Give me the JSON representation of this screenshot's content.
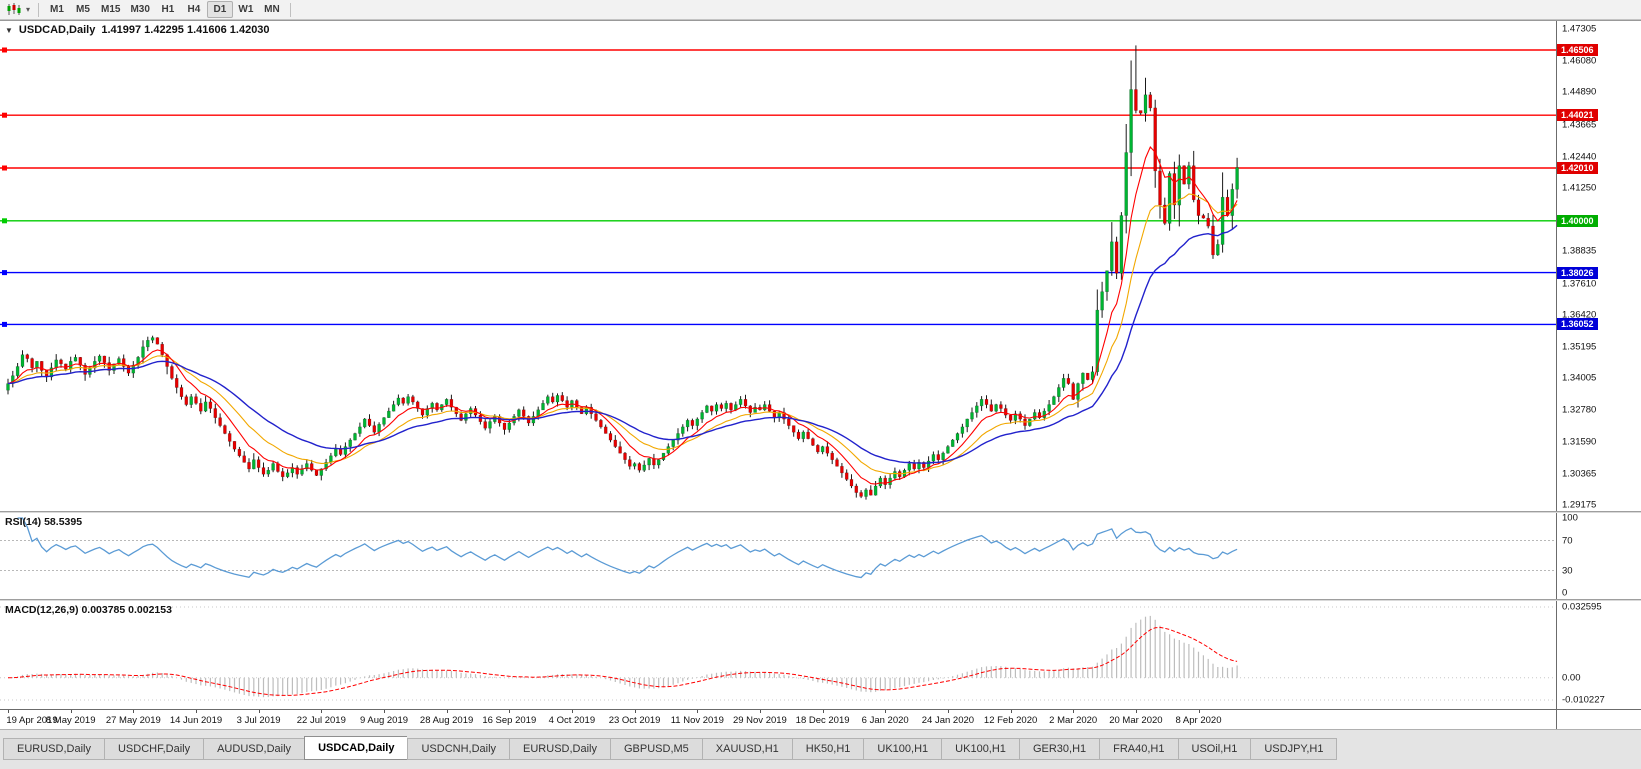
{
  "toolbar": {
    "periods": [
      "M1",
      "M5",
      "M15",
      "M30",
      "H1",
      "H4",
      "D1",
      "W1",
      "MN"
    ],
    "active_period": "D1"
  },
  "icons": {
    "symbol_dropdown": "▼",
    "toolbar_dropdown": "▾"
  },
  "chart_data": {
    "type": "candlestick",
    "title_symbol": "USDCAD,Daily",
    "title_ohlc": "1.41997 1.42295 1.41606 1.42030",
    "price_min": 1.29175,
    "price_max": 1.47305,
    "price_labels": [
      "1.47305",
      "1.46080",
      "1.44890",
      "1.43665",
      "1.42440",
      "1.41250",
      "1.40025",
      "1.38835",
      "1.37610",
      "1.36420",
      "1.35195",
      "1.34005",
      "1.32780",
      "1.31590",
      "1.30365",
      "1.29175"
    ],
    "levels": [
      {
        "value": 1.46506,
        "label": "1.46506",
        "line_color": "#ff0000",
        "badge_color": "#e00000"
      },
      {
        "value": 1.44021,
        "label": "1.44021",
        "line_color": "#ff0000",
        "badge_color": "#e00000"
      },
      {
        "value": 1.4201,
        "label": "1.42010",
        "line_color": "#ff0000",
        "badge_color": "#e00000"
      },
      {
        "value": 1.4,
        "label": "1.40000",
        "line_color": "#00cc00",
        "badge_color": "#00ad00"
      },
      {
        "value": 1.38026,
        "label": "1.38026",
        "line_color": "#0000ff",
        "badge_color": "#0000d8"
      },
      {
        "value": 1.36052,
        "label": "1.36052",
        "line_color": "#0000ff",
        "badge_color": "#0000d8"
      }
    ],
    "up_color": "#00b432",
    "down_color": "#e60000",
    "wick_color": "#1a1a1a",
    "mas": [
      {
        "name": "ma-mid-yellow",
        "period": 16,
        "color": "#f2a800",
        "width": 1.1
      },
      {
        "name": "ma-fast-red",
        "period": 8,
        "color": "#ff0000",
        "width": 1.1
      },
      {
        "name": "ma-slow-blue",
        "period": 30,
        "color": "#2222cc",
        "width": 1.4
      }
    ],
    "first_open": 1.3355,
    "closes": [
      1.338,
      1.341,
      1.3445,
      1.349,
      1.3475,
      1.344,
      1.3465,
      1.343,
      1.3405,
      1.344,
      1.347,
      1.3455,
      1.3435,
      1.3465,
      1.348,
      1.345,
      1.3415,
      1.344,
      1.3465,
      1.3485,
      1.346,
      1.343,
      1.3455,
      1.3475,
      1.3445,
      1.342,
      1.345,
      1.348,
      1.352,
      1.3545,
      1.3555,
      1.353,
      1.349,
      1.3445,
      1.34,
      1.3365,
      1.333,
      1.33,
      1.333,
      1.3305,
      1.3275,
      1.331,
      1.3285,
      1.325,
      1.322,
      1.319,
      1.316,
      1.313,
      1.3105,
      1.308,
      1.3055,
      1.309,
      1.306,
      1.3035,
      1.305,
      1.3075,
      1.3045,
      1.3025,
      1.304,
      1.306,
      1.3035,
      1.3055,
      1.3075,
      1.305,
      1.303,
      1.3055,
      1.308,
      1.3105,
      1.313,
      1.311,
      1.314,
      1.3165,
      1.319,
      1.3215,
      1.3245,
      1.322,
      1.3195,
      1.3225,
      1.325,
      1.3275,
      1.33,
      1.3325,
      1.3305,
      1.333,
      1.331,
      1.3285,
      1.326,
      1.3285,
      1.3305,
      1.328,
      1.33,
      1.332,
      1.329,
      1.3265,
      1.324,
      1.3265,
      1.3285,
      1.326,
      1.3235,
      1.321,
      1.3235,
      1.3255,
      1.323,
      1.3205,
      1.323,
      1.3255,
      1.328,
      1.3255,
      1.323,
      1.3255,
      1.328,
      1.3305,
      1.333,
      1.331,
      1.3335,
      1.3315,
      1.329,
      1.3315,
      1.329,
      1.3265,
      1.329,
      1.3265,
      1.324,
      1.3215,
      1.319,
      1.3165,
      1.314,
      1.3115,
      1.309,
      1.3065,
      1.3075,
      1.305,
      1.307,
      1.3095,
      1.307,
      1.309,
      1.3115,
      1.314,
      1.3165,
      1.319,
      1.3215,
      1.324,
      1.322,
      1.3245,
      1.327,
      1.3295,
      1.3275,
      1.33,
      1.3285,
      1.3305,
      1.328,
      1.33,
      1.332,
      1.3295,
      1.327,
      1.329,
      1.328,
      1.33,
      1.3275,
      1.325,
      1.327,
      1.3245,
      1.322,
      1.3195,
      1.317,
      1.3195,
      1.317,
      1.3145,
      1.312,
      1.314,
      1.3115,
      1.309,
      1.3065,
      1.304,
      1.3015,
      1.299,
      1.2965,
      1.295,
      1.2975,
      1.2955,
      1.299,
      1.302,
      1.2995,
      1.302,
      1.3045,
      1.3025,
      1.305,
      1.3075,
      1.3055,
      1.308,
      1.306,
      1.3085,
      1.311,
      1.309,
      1.3115,
      1.314,
      1.3165,
      1.319,
      1.3215,
      1.3245,
      1.327,
      1.3295,
      1.332,
      1.33,
      1.3275,
      1.33,
      1.3285,
      1.326,
      1.324,
      1.3265,
      1.3245,
      1.322,
      1.3245,
      1.327,
      1.325,
      1.3275,
      1.33,
      1.333,
      1.3365,
      1.34,
      1.338,
      1.332,
      1.338,
      1.342,
      1.3395,
      1.3425,
      1.366,
      1.373,
      1.381,
      1.392,
      1.38,
      1.402,
      1.426,
      1.45,
      1.442,
      1.441,
      1.448,
      1.443,
      1.419,
      1.406,
      1.399,
      1.418,
      1.406,
      1.421,
      1.414,
      1.421,
      1.408,
      1.402,
      1.401,
      1.398,
      1.387,
      1.391,
      1.409,
      1.402,
      1.412,
      1.4203
    ],
    "wick_overrides": {
      "226": {
        "l": 1.341
      },
      "229": {
        "h": 1.3995
      },
      "234": {
        "h": 1.4668
      },
      "236": {
        "h": 1.4545
      },
      "250": {
        "l": 1.3855
      },
      "255": {
        "h": 1.424,
        "l": 1.4085
      }
    },
    "dates": [
      "19 Apr 2019",
      "8 May 2019",
      "27 May 2019",
      "14 Jun 2019",
      "3 Jul 2019",
      "22 Jul 2019",
      "9 Aug 2019",
      "28 Aug 2019",
      "16 Sep 2019",
      "4 Oct 2019",
      "23 Oct 2019",
      "11 Nov 2019",
      "29 Nov 2019",
      "18 Dec 2019",
      "6 Jan 2020",
      "24 Jan 2020",
      "12 Feb 2020",
      "2 Mar 2020",
      "20 Mar 2020",
      "8 Apr 2020"
    ],
    "date_step": 13
  },
  "rsi": {
    "label": "RSI(14) 58.5395",
    "period": 14,
    "color": "#5b9bd5",
    "levels": [
      {
        "value": 100,
        "label": "100"
      },
      {
        "value": 70,
        "label": "70"
      },
      {
        "value": 30,
        "label": "30"
      },
      {
        "value": 0,
        "label": "0"
      }
    ],
    "dotted": [
      70,
      30
    ]
  },
  "macd": {
    "label": "MACD(12,26,9) 0.003785 0.002153",
    "fast": 12,
    "slow": 26,
    "signal": 9,
    "hist_color": "#bdbdbd",
    "signal_color": "#ff0000",
    "visual_peak": 0.0285,
    "scale": [
      {
        "value": 0.032595,
        "label": "0.032595"
      },
      {
        "value": 0,
        "label": "0.00"
      },
      {
        "value": -0.010227,
        "label": "-0.010227"
      }
    ]
  },
  "tabs": {
    "active_index": 3,
    "items": [
      "EURUSD,Daily",
      "USDCHF,Daily",
      "AUDUSD,Daily",
      "USDCAD,Daily",
      "USDCNH,Daily",
      "EURUSD,Daily",
      "GBPUSD,M5",
      "XAUUSD,H1",
      "HK50,H1",
      "UK100,H1",
      "UK100,H1",
      "GER30,H1",
      "FRA40,H1",
      "USOil,H1",
      "USDJPY,H1"
    ]
  }
}
